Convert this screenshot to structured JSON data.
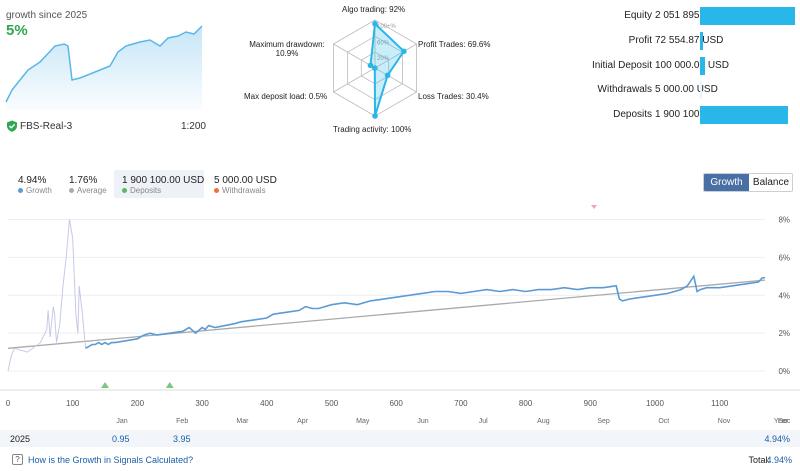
{
  "header": {
    "growth_label": "growth since 2025",
    "growth_value": "5%",
    "account_name": "FBS-Real-3",
    "leverage": "1:200"
  },
  "radar": {
    "labels": [
      {
        "text": "Algo trading: 92%"
      },
      {
        "text": "Profit Trades: 69.6%"
      },
      {
        "text": "Loss Trades: 30.4%"
      },
      {
        "text": "Trading activity: 100%"
      },
      {
        "text": "Max deposit load: 0.5%"
      },
      {
        "text": "Maximum drawdown: 10.9%"
      }
    ],
    "values": [
      92,
      69.6,
      30.4,
      100,
      0.5,
      10.9
    ],
    "ring_labels": [
      "100+%",
      "60%",
      "20%"
    ]
  },
  "stats": [
    {
      "name": "Equity",
      "value": "2 051 895.48 USD",
      "fraction": 1.0
    },
    {
      "name": "Profit",
      "value": "72 554.87 USD",
      "fraction": 0.035
    },
    {
      "name": "Initial Deposit",
      "value": "100 000.00 USD",
      "fraction": 0.049
    },
    {
      "name": "Withdrawals",
      "value": "5 000.00 USD",
      "fraction": 0.003
    },
    {
      "name": "Deposits",
      "value": "1 900 100.00 USD",
      "fraction": 0.926
    }
  ],
  "stats_bar_color": "#29b6e8",
  "summary": [
    {
      "value": "4.94%",
      "label": "Growth",
      "color": "#5b9bd5"
    },
    {
      "value": "1.76%",
      "label": "Average",
      "color": "#aaaaaa"
    },
    {
      "value": "1 900 100.00 USD",
      "label": "Deposits",
      "color": "#5cb85c"
    },
    {
      "value": "5 000.00 USD",
      "label": "Withdrawals",
      "color": "#e8743b"
    }
  ],
  "toggle": {
    "growth": "Growth",
    "balance": "Balance"
  },
  "chart_data": {
    "type": "line",
    "x_ticks": [
      "0",
      "100",
      "200",
      "300",
      "400",
      "500",
      "600",
      "700",
      "800",
      "900",
      "1000",
      "1100"
    ],
    "y_ticks": [
      "0%",
      "2%",
      "4%",
      "6%",
      "8%"
    ],
    "ylim": [
      -1,
      8.5
    ],
    "xlim": [
      0,
      1170
    ],
    "months": [
      "Jan",
      "Feb",
      "Mar",
      "Apr",
      "May",
      "Jun",
      "Jul",
      "Aug",
      "Sep",
      "Oct",
      "Nov",
      "Dec"
    ],
    "year_label": "Year",
    "series": [
      {
        "name": "Growth",
        "color": "#5b9bd5",
        "x": [
          0,
          5,
          10,
          30,
          50,
          60,
          62,
          65,
          70,
          72,
          75,
          80,
          85,
          90,
          95,
          100,
          105,
          108,
          110,
          115,
          120,
          125,
          130,
          135,
          140,
          145,
          150,
          155,
          160,
          165,
          200,
          205,
          210,
          220,
          230,
          250,
          270,
          280,
          290,
          300,
          305,
          310,
          320,
          350,
          360,
          380,
          400,
          410,
          430,
          450,
          460,
          470,
          480,
          500,
          520,
          540,
          560,
          580,
          600,
          620,
          640,
          660,
          680,
          700,
          720,
          740,
          760,
          780,
          800,
          820,
          840,
          860,
          880,
          900,
          920,
          940,
          945,
          950,
          960,
          980,
          1000,
          1020,
          1040,
          1050,
          1060,
          1065,
          1070,
          1080,
          1100,
          1120,
          1140,
          1160,
          1165,
          1170
        ],
        "y": [
          0,
          0.8,
          1.2,
          1.0,
          1.5,
          2.2,
          3.2,
          1.8,
          3.4,
          3.0,
          1.5,
          2.5,
          4.5,
          6.0,
          8.0,
          7.0,
          3.0,
          2.0,
          4.5,
          3.0,
          1.2,
          1.3,
          1.4,
          1.4,
          1.5,
          1.4,
          1.5,
          1.4,
          1.5,
          1.5,
          1.7,
          1.8,
          1.9,
          2.0,
          1.9,
          2.0,
          2.1,
          2.3,
          2.0,
          2.3,
          2.2,
          2.4,
          2.3,
          2.5,
          2.6,
          2.7,
          2.8,
          3.0,
          3.1,
          3.2,
          3.4,
          3.3,
          3.3,
          3.5,
          3.6,
          3.5,
          3.7,
          3.8,
          3.9,
          4.0,
          4.1,
          4.2,
          4.2,
          4.1,
          4.2,
          4.3,
          4.2,
          4.3,
          4.2,
          4.3,
          4.3,
          4.4,
          4.3,
          4.4,
          4.4,
          4.5,
          3.8,
          3.7,
          3.8,
          3.9,
          4.0,
          4.1,
          4.3,
          4.5,
          5.0,
          4.2,
          4.3,
          4.4,
          4.4,
          4.5,
          4.6,
          4.7,
          4.9,
          4.94
        ]
      },
      {
        "name": "Average",
        "color": "#aaaaaa",
        "x": [
          0,
          1170
        ],
        "y": [
          1.2,
          4.8
        ]
      }
    ],
    "markers": [
      {
        "x": 150,
        "label": "Deposits"
      },
      {
        "x": 250,
        "label": "Deposits"
      }
    ]
  },
  "year_row": {
    "year": "2025",
    "jan": "0.95",
    "feb": "3.95",
    "total": "4.94%"
  },
  "footer": {
    "help_link": "How is the Growth in Signals Calculated?",
    "total_label": "Total:",
    "total_value": "4.94%"
  }
}
